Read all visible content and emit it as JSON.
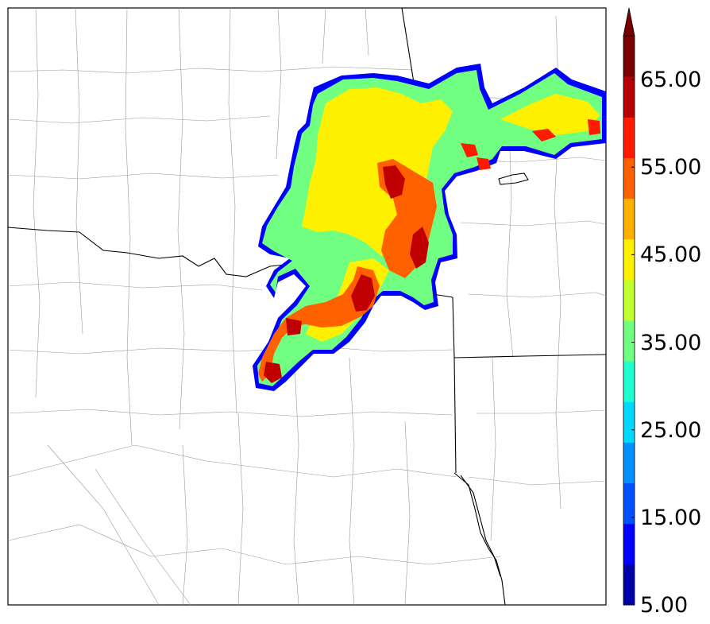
{
  "colorbar": {
    "tick_labels": [
      "5.00",
      "15.00",
      "25.00",
      "35.00",
      "45.00",
      "55.00",
      "65.00"
    ],
    "min": 5,
    "max": 70,
    "step": 5,
    "extend": "max",
    "colors": [
      "#0000a8",
      "#0000ff",
      "#0050ff",
      "#0090ff",
      "#00d8ff",
      "#20ffd0",
      "#70ff80",
      "#c0ff30",
      "#fff000",
      "#ffb000",
      "#ff6000",
      "#ff1a00",
      "#b80000",
      "#7a0000"
    ]
  },
  "map": {
    "boundaries": "state and county lines",
    "field_colors": {
      "low": "#0000ff",
      "mid": "#70ff80",
      "high": "#fff000",
      "core": "#c00000"
    }
  }
}
